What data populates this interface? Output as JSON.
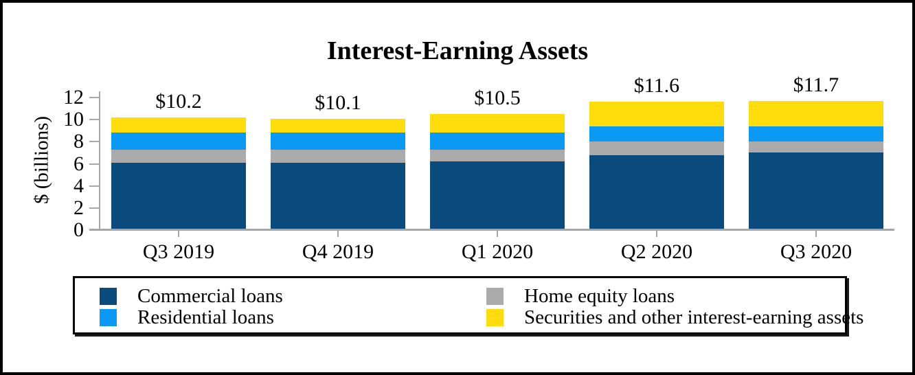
{
  "title": "Interest-Earning Assets",
  "chart_data": {
    "type": "bar",
    "stacked": true,
    "title": "Interest-Earning Assets",
    "ylabel": "$ (billions)",
    "xlabel": "",
    "ylim": [
      0,
      12
    ],
    "yticks": [
      0,
      2,
      4,
      6,
      8,
      10,
      12
    ],
    "grid": false,
    "legend_position": "bottom",
    "axis_color": "#A6A6A6",
    "categories": [
      "Q3 2019",
      "Q4 2019",
      "Q1 2020",
      "Q2 2020",
      "Q3 2020"
    ],
    "stack_order_bottom_to_top": [
      "Commercial loans",
      "Home equity loans",
      "Residential loans",
      "Securities and other interest-earning assets"
    ],
    "series": [
      {
        "name": "Commercial loans",
        "color": "#0B4A7D",
        "values": [
          6.1,
          6.1,
          6.2,
          6.8,
          7.0
        ]
      },
      {
        "name": "Home equity loans",
        "color": "#ABABAB",
        "values": [
          1.2,
          1.2,
          1.1,
          1.2,
          1.0
        ]
      },
      {
        "name": "Residential loans",
        "color": "#0A99F5",
        "values": [
          1.5,
          1.5,
          1.5,
          1.4,
          1.4
        ]
      },
      {
        "name": "Securities and other interest-earning assets",
        "color": "#FFDD0D",
        "values": [
          1.4,
          1.3,
          1.7,
          2.2,
          2.3
        ]
      }
    ],
    "totals": [
      10.2,
      10.1,
      10.5,
      11.6,
      11.7
    ],
    "total_labels": [
      "$10.2",
      "$10.1",
      "$10.5",
      "$11.6",
      "$11.7"
    ],
    "legend": {
      "items": [
        {
          "label": "Commercial loans",
          "color": "#0B4A7D"
        },
        {
          "label": "Residential loans",
          "color": "#0A99F5"
        },
        {
          "label": "Home equity loans",
          "color": "#ABABAB"
        },
        {
          "label": "Securities and other interest-earning assets",
          "color": "#FFDD0D"
        }
      ]
    }
  }
}
